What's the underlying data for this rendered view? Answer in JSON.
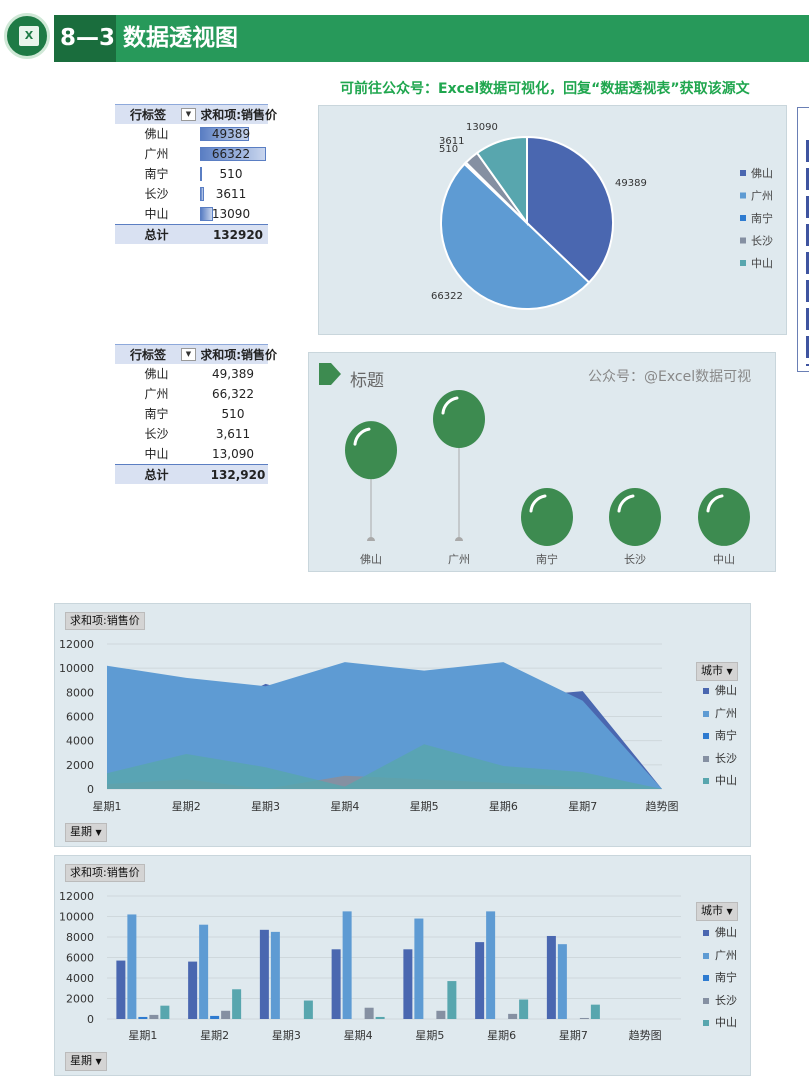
{
  "header": {
    "title": "8—3 数据透视图",
    "logo_text": "X"
  },
  "subtitle": "可前往公众号：Excel数据可视化，回复“数据透视表”获取该源文",
  "pivot1": {
    "row_label": "行标签",
    "value_label": "求和项:销售价",
    "rows": [
      {
        "city": "佛山",
        "value": "49389",
        "num": 49389
      },
      {
        "city": "广州",
        "value": "66322",
        "num": 66322
      },
      {
        "city": "南宁",
        "value": "510",
        "num": 510
      },
      {
        "city": "长沙",
        "value": "3611",
        "num": 3611
      },
      {
        "city": "中山",
        "value": "13090",
        "num": 13090
      }
    ],
    "total_label": "总计",
    "total_value": "132920"
  },
  "pivot2": {
    "row_label": "行标签",
    "value_label": "求和项:销售价",
    "rows": [
      {
        "city": "佛山",
        "value": "49,389"
      },
      {
        "city": "广州",
        "value": "66,322"
      },
      {
        "city": "南宁",
        "value": "510"
      },
      {
        "city": "长沙",
        "value": "3,611"
      },
      {
        "city": "中山",
        "value": "13,090"
      }
    ],
    "total_label": "总计",
    "total_value": "132,920"
  },
  "colors": {
    "佛山": "#4a67b0",
    "广州": "#5e9bd3",
    "南宁": "#2e7bd0",
    "长沙": "#8590a2",
    "中山": "#58a6ae",
    "balloon": "#3d8b50"
  },
  "balloon_chart": {
    "title": "标题",
    "watermark": "公众号：@Excel数据可视",
    "labels": [
      "佛山",
      "广州",
      "南宁",
      "长沙",
      "中山"
    ]
  },
  "area_chart": {
    "value_button": "求和项:销售价",
    "legend_title": "城市",
    "axis_button": "星期"
  },
  "column_chart": {
    "value_button": "求和项:销售价",
    "legend_title": "城市",
    "axis_button": "星期"
  },
  "chart_data": [
    {
      "type": "pie",
      "categories": [
        "佛山",
        "广州",
        "南宁",
        "长沙",
        "中山"
      ],
      "values": [
        49389,
        66322,
        510,
        3611,
        13090
      ],
      "value_labels": [
        "49389",
        "66322",
        "510",
        "3611",
        "13090"
      ],
      "legend": [
        "佛山",
        "广州",
        "南宁",
        "长沙",
        "中山"
      ]
    },
    {
      "type": "bar",
      "title": "标题",
      "categories": [
        "佛山",
        "广州",
        "南宁",
        "长沙",
        "中山"
      ],
      "values": [
        49389,
        66322,
        510,
        3611,
        13090
      ]
    },
    {
      "type": "area",
      "categories": [
        "星期1",
        "星期2",
        "星期3",
        "星期4",
        "星期5",
        "星期6",
        "星期7",
        "趋势图"
      ],
      "ylim": [
        0,
        12000
      ],
      "yticks": [
        "0",
        "2000",
        "4000",
        "6000",
        "8000",
        "10000",
        "12000"
      ],
      "series": [
        {
          "name": "佛山",
          "values": [
            5700,
            5600,
            8700,
            6800,
            6800,
            7500,
            8100,
            0
          ]
        },
        {
          "name": "广州",
          "values": [
            10200,
            9200,
            8500,
            10500,
            9800,
            10500,
            7300,
            0
          ]
        },
        {
          "name": "南宁",
          "values": [
            200,
            300,
            0,
            0,
            0,
            0,
            0,
            0
          ]
        },
        {
          "name": "长沙",
          "values": [
            400,
            800,
            0,
            1100,
            800,
            500,
            100,
            0
          ]
        },
        {
          "name": "中山",
          "values": [
            1300,
            2900,
            1800,
            200,
            3700,
            1900,
            1400,
            0
          ]
        }
      ],
      "legend_title": "城市"
    },
    {
      "type": "bar",
      "categories": [
        "星期1",
        "星期2",
        "星期3",
        "星期4",
        "星期5",
        "星期6",
        "星期7",
        "趋势图"
      ],
      "ylim": [
        0,
        12000
      ],
      "yticks": [
        "0",
        "2000",
        "4000",
        "6000",
        "8000",
        "10000",
        "12000"
      ],
      "series": [
        {
          "name": "佛山",
          "values": [
            5700,
            5600,
            8700,
            6800,
            6800,
            7500,
            8100,
            0
          ]
        },
        {
          "name": "广州",
          "values": [
            10200,
            9200,
            8500,
            10500,
            9800,
            10500,
            7300,
            0
          ]
        },
        {
          "name": "南宁",
          "values": [
            200,
            300,
            0,
            0,
            0,
            0,
            0,
            0
          ]
        },
        {
          "name": "长沙",
          "values": [
            400,
            800,
            0,
            1100,
            800,
            500,
            100,
            0
          ]
        },
        {
          "name": "中山",
          "values": [
            1300,
            2900,
            1800,
            200,
            3700,
            1900,
            1400,
            0
          ]
        }
      ],
      "legend_title": "城市"
    }
  ]
}
